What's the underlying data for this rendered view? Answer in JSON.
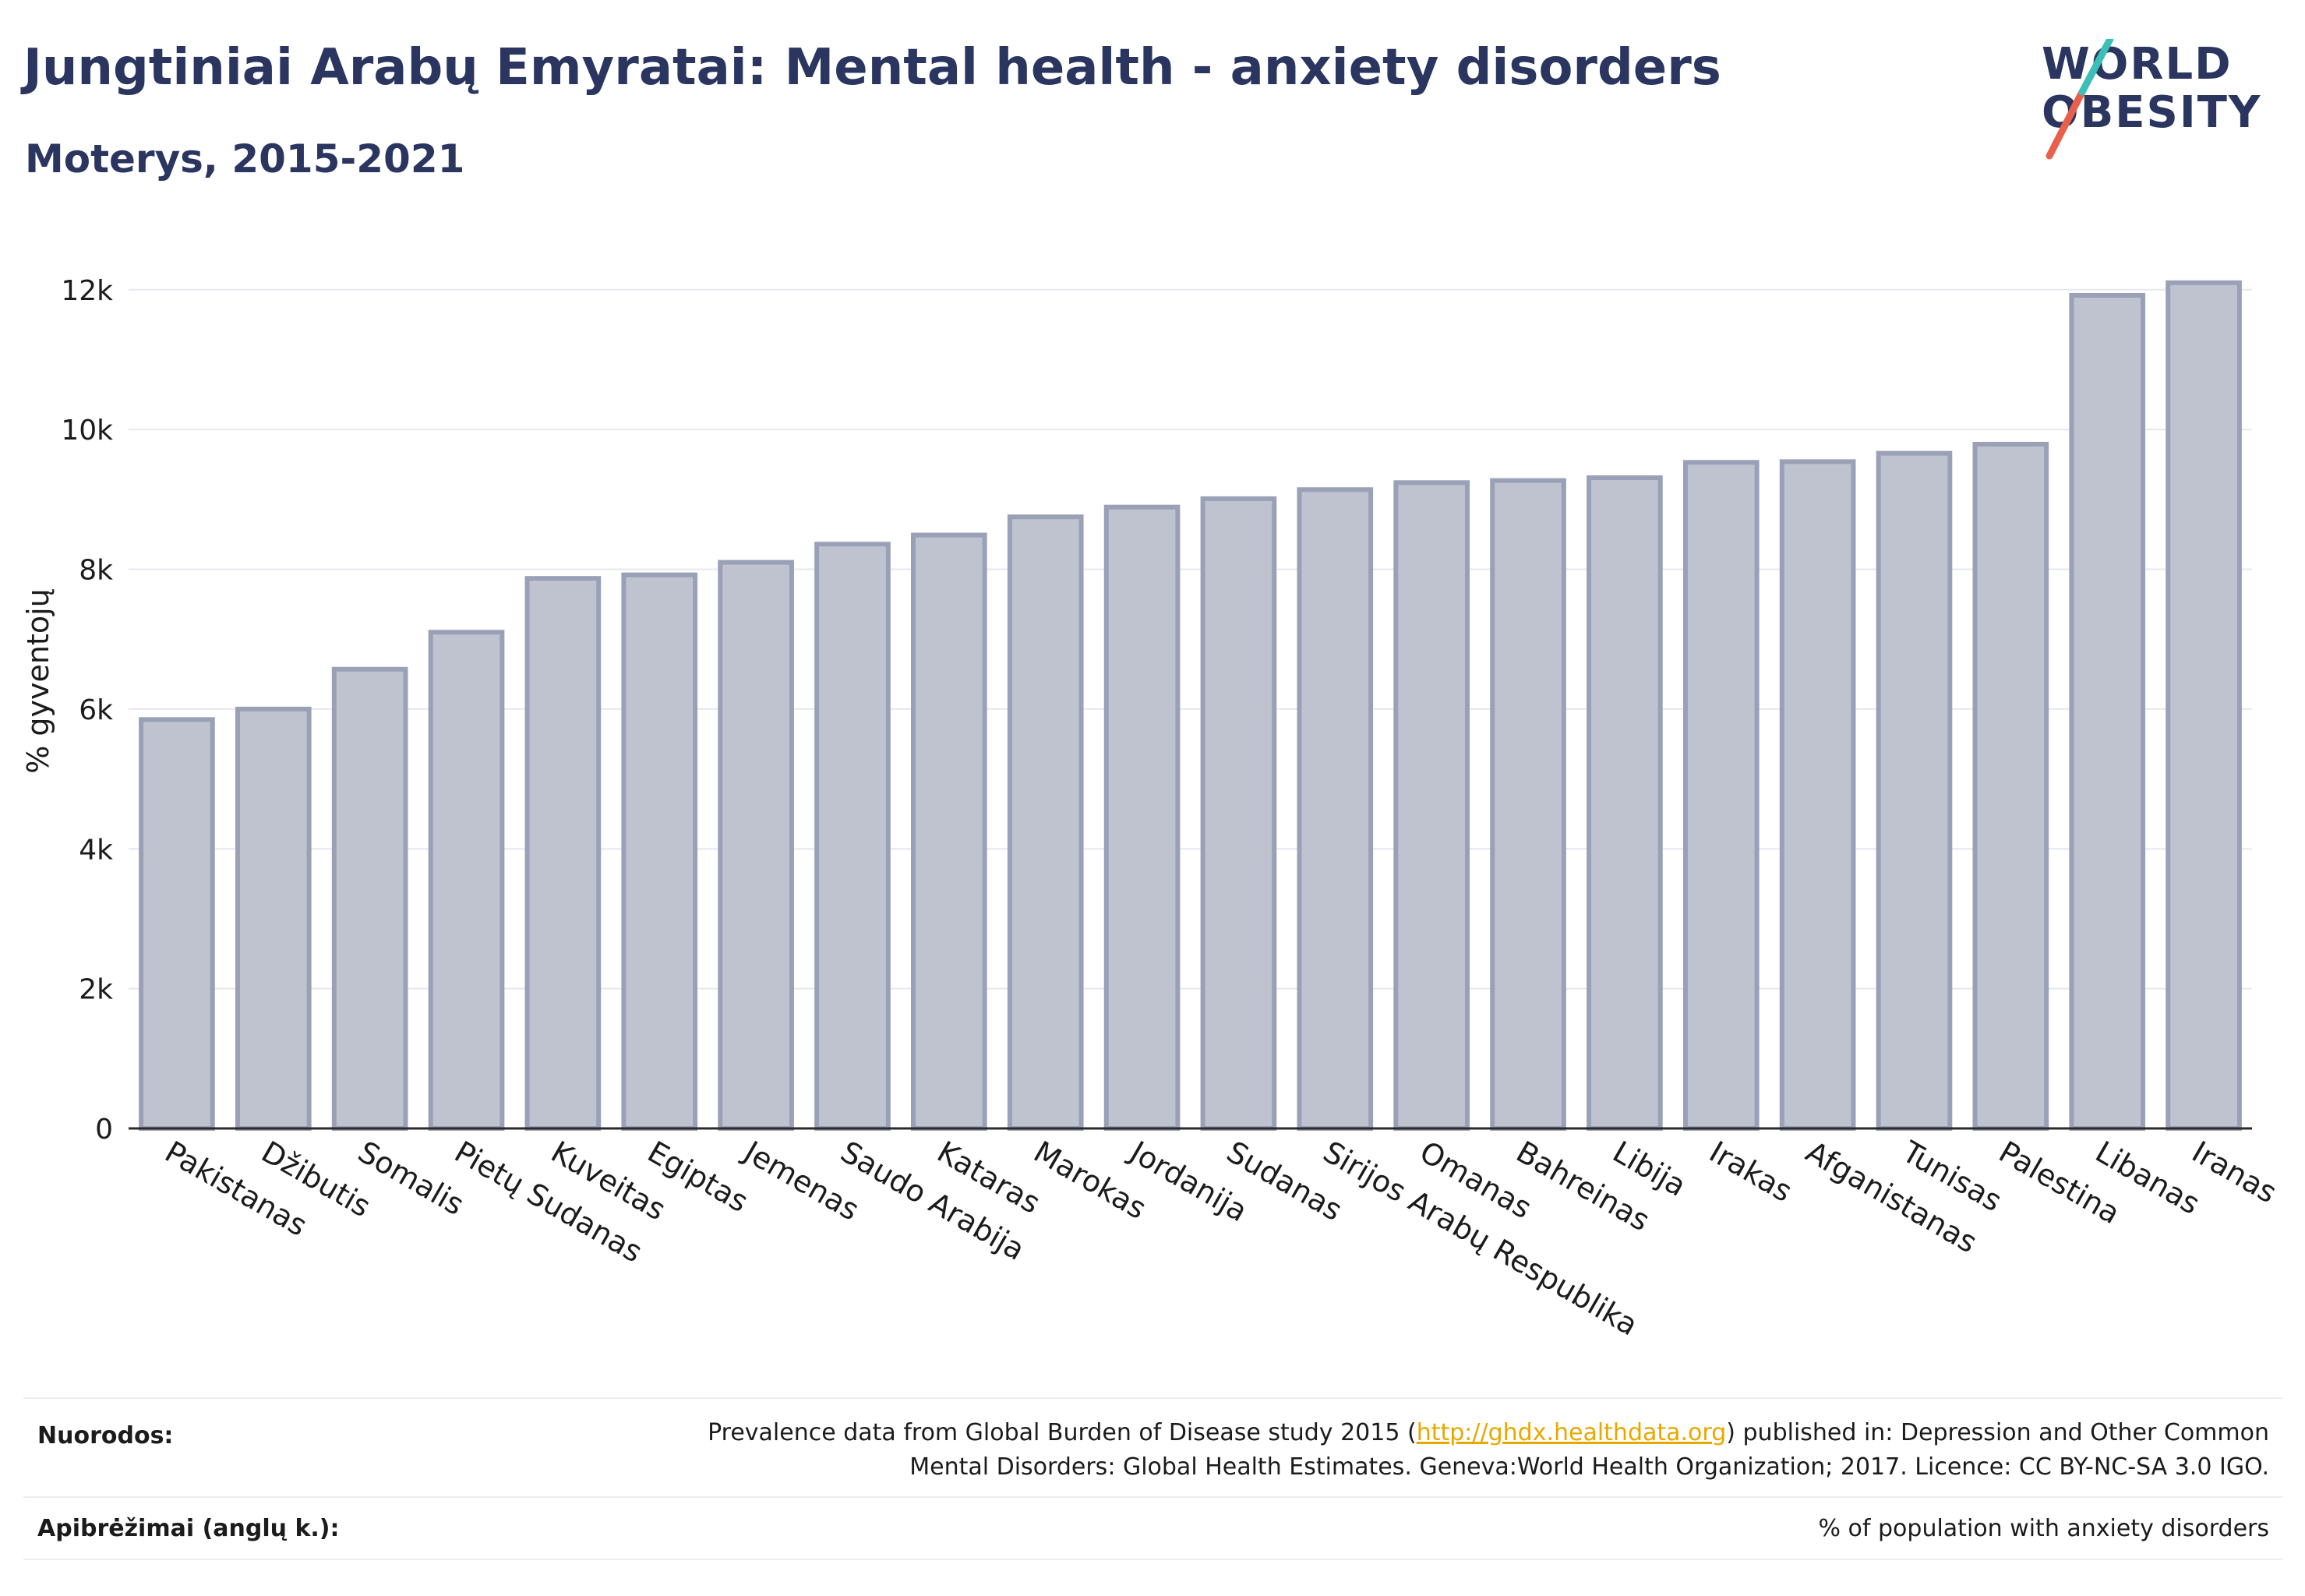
{
  "title": "Jungtiniai Arabų Emyratai: Mental health - anxiety disorders",
  "subtitle": "Moterys, 2015-2021",
  "logo": {
    "line1": "WORLD",
    "line2": "OBESITY"
  },
  "colors": {
    "bar_fill": "#bfc3d0",
    "bar_stroke": "#9aa0b6",
    "text": "#2a3560",
    "grid": "#e6e8ee",
    "link": "#e8a800",
    "logo_teal": "#3bbfb7",
    "logo_red": "#e8604c"
  },
  "chart_data": {
    "type": "bar",
    "ylabel": "% gyventojų",
    "ylim": [
      0,
      12800
    ],
    "yticks": [
      0,
      2000,
      4000,
      6000,
      8000,
      10000,
      12000
    ],
    "ytick_labels": [
      "0",
      "2k",
      "4k",
      "6k",
      "8k",
      "10k",
      "12k"
    ],
    "categories": [
      "Pakistanas",
      "Džibutis",
      "Somalis",
      "Pietų Sudanas",
      "Kuveitas",
      "Egiptas",
      "Jemenas",
      "Saudo Arabija",
      "Kataras",
      "Marokas",
      "Jordanija",
      "Sudanas",
      "Sirijos Arabų Respublika",
      "Omanas",
      "Bahreinas",
      "Libija",
      "Irakas",
      "Afganistanas",
      "Tunisas",
      "Palestina",
      "Libanas",
      "Iranas"
    ],
    "values": [
      5850,
      6000,
      6570,
      7100,
      7870,
      7920,
      8100,
      8360,
      8490,
      8750,
      8890,
      9010,
      9140,
      9240,
      9270,
      9310,
      9530,
      9540,
      9660,
      9790,
      11920,
      12100
    ],
    "grid": true,
    "legend": "none"
  },
  "footer": {
    "refs_label": "Nuorodos:",
    "refs_pre": "Prevalence data from Global Burden of Disease study 2015 (",
    "refs_link": "http://ghdx.healthdata.org",
    "refs_post": ") published in: Depression and Other Common",
    "refs_line2": "Mental Disorders: Global Health Estimates. Geneva:World Health Organization; 2017. Licence: CC BY-NC-SA 3.0 IGO.",
    "def_label": "Apibrėžimai (anglų k.):",
    "def_text": "% of population with anxiety disorders"
  }
}
